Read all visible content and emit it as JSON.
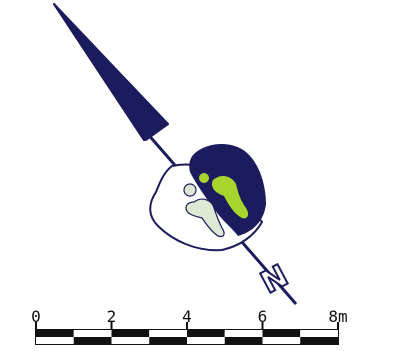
{
  "colors": {
    "navy": "#1b1b5e",
    "lime": "#a8d42e",
    "pale_green": "#dfe8d3",
    "outline": "#1b1b5e",
    "ink": "#111111",
    "paper": "#ffffff"
  },
  "north_arrow": {
    "label": "N",
    "icon": "north-arrow-icon"
  },
  "features": [
    {
      "name": "grave-cut-north",
      "fill": "navy"
    },
    {
      "name": "grave-cut-south",
      "fill": "white"
    },
    {
      "name": "burial-lime",
      "fill": "lime"
    },
    {
      "name": "burial-pale",
      "fill": "pale_green"
    }
  ],
  "scale_bar": {
    "unit": "m",
    "ticks": [
      "0",
      "2",
      "4",
      "6",
      "8m"
    ],
    "segments": 8
  }
}
